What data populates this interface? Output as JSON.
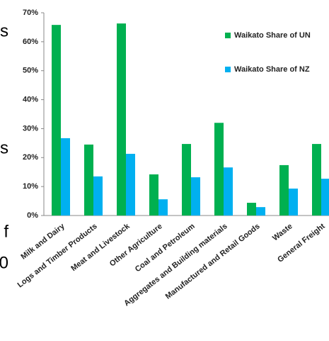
{
  "chart_data": {
    "type": "bar",
    "fragments": [
      "s",
      "s",
      "f",
      "0"
    ],
    "categories": [
      "Milk and Dairy",
      "Logs and Timber Products",
      "Meat and Livestock",
      "Other Agriculture",
      "Coal and Petroleum",
      "Aggregates and Building materials",
      "Manufactured and Retail Goods",
      "Waste",
      "General Freight"
    ],
    "series": [
      {
        "name": "Waikato Share of UN",
        "color": "#00b050",
        "values": [
          65.8,
          24.5,
          66.3,
          14.2,
          24.7,
          32,
          4.4,
          17.4,
          24.7
        ]
      },
      {
        "name": "Waikato Share of NZ",
        "color": "#00b0f0",
        "values": [
          26.7,
          13.5,
          21.3,
          5.6,
          13.2,
          16.6,
          2.9,
          9.3,
          12.7
        ]
      }
    ],
    "ylim": [
      0,
      70
    ],
    "yticks": [
      {
        "value": 0,
        "label": "0%"
      },
      {
        "value": 10,
        "label": "10%"
      },
      {
        "value": 20,
        "label": "20%"
      },
      {
        "value": 30,
        "label": "30%"
      },
      {
        "value": 40,
        "label": "40%"
      },
      {
        "value": 50,
        "label": "50%"
      },
      {
        "value": 60,
        "label": "60%"
      },
      {
        "value": 70,
        "label": "70%"
      }
    ],
    "grid": false,
    "legend": "right"
  }
}
